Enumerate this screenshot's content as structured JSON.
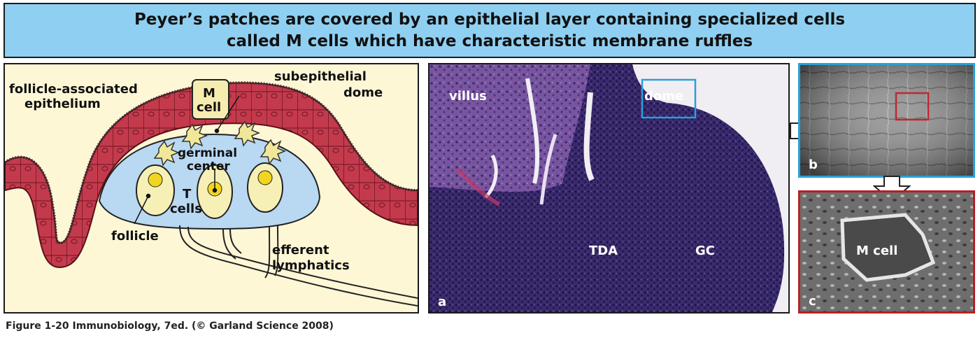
{
  "banner": {
    "line1": "Peyer’s patches are covered by an epithelial layer containing specialized cells",
    "line2": "called M cells which have characteristic membrane ruffles"
  },
  "diagram": {
    "follicle_epithelium": "follicle-associated",
    "follicle_epithelium_2": "epithelium",
    "m_cell_1": "M",
    "m_cell_2": "cell",
    "subepithelial_1": "subepithelial",
    "subepithelial_2": "dome",
    "germinal_1": "germinal",
    "germinal_2": "center",
    "t_cells_1": "T",
    "t_cells_2": "cells",
    "follicle": "follicle",
    "efferent_1": "efferent",
    "efferent_2": "lymphatics"
  },
  "micrograph_a": {
    "villus": "villus",
    "dome": "dome",
    "tda": "TDA",
    "gc": "GC",
    "panel_letter": "a"
  },
  "micrograph_b": {
    "panel_letter": "b"
  },
  "micrograph_c": {
    "m_cell": "M cell",
    "panel_letter": "c"
  },
  "caption": "Figure 1-20  Immunobiology, 7ed. (© Garland Science 2008)",
  "colors": {
    "banner": "#8fd0f2",
    "epithelium": "#c43a4d",
    "lumen": "#fdf7d6",
    "dome": "#b9d8f2",
    "follicle": "#f6f0b6",
    "box_b": "#2aa0d8",
    "box_c": "#b52026"
  }
}
